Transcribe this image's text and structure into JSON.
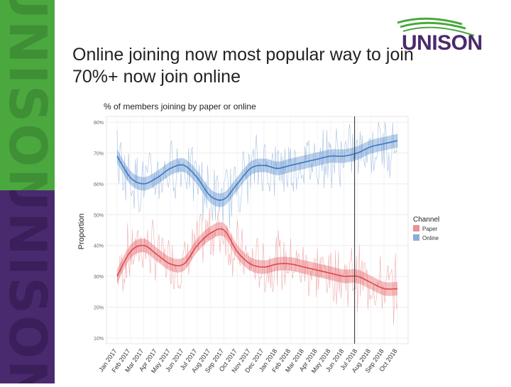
{
  "brand": {
    "side_word": "UNISON",
    "logo_text": "UNISON",
    "green": "#4aa83f",
    "purple": "#4a2a6e"
  },
  "slide": {
    "title_line1": "Online joining now most popular way to join",
    "title_line2": "70%+ now join online"
  },
  "chart_data": {
    "type": "line",
    "title": "% of members joining by paper or online",
    "xlabel": "",
    "ylabel": "Proportion",
    "ylim": [
      10,
      80
    ],
    "yticks": [
      "10%",
      "20%",
      "30%",
      "40%",
      "50%",
      "60%",
      "70%",
      "80%"
    ],
    "categories": [
      "Jan 2017",
      "Feb 2017",
      "Mar 2017",
      "Apr 2017",
      "May 2017",
      "Jun 2017",
      "Jul 2017",
      "Aug 2017",
      "Sep 2017",
      "Oct 2017",
      "Nov 2017",
      "Dec 2017",
      "Jan 2018",
      "Feb 2018",
      "Mar 2018",
      "Apr 2018",
      "May 2018",
      "Jun 2018",
      "Jul 2018",
      "Aug 2018",
      "Sep 2018",
      "Oct 2018"
    ],
    "vline_at": "Jul 2018",
    "legend": {
      "title": "Channel",
      "placement": "right"
    },
    "series": [
      {
        "name": "Paper",
        "color": "#e0474c",
        "values": [
          30,
          38,
          40,
          37,
          34,
          34,
          40,
          44,
          45,
          38,
          34,
          33,
          34,
          34,
          33,
          32,
          31,
          30,
          30,
          28,
          26,
          26
        ]
      },
      {
        "name": "Online",
        "color": "#3b78c2",
        "values": [
          69,
          62,
          60,
          62,
          65,
          66,
          62,
          56,
          55,
          60,
          65,
          66,
          65,
          66,
          67,
          68,
          69,
          69,
          70,
          72,
          73,
          74
        ]
      }
    ]
  }
}
